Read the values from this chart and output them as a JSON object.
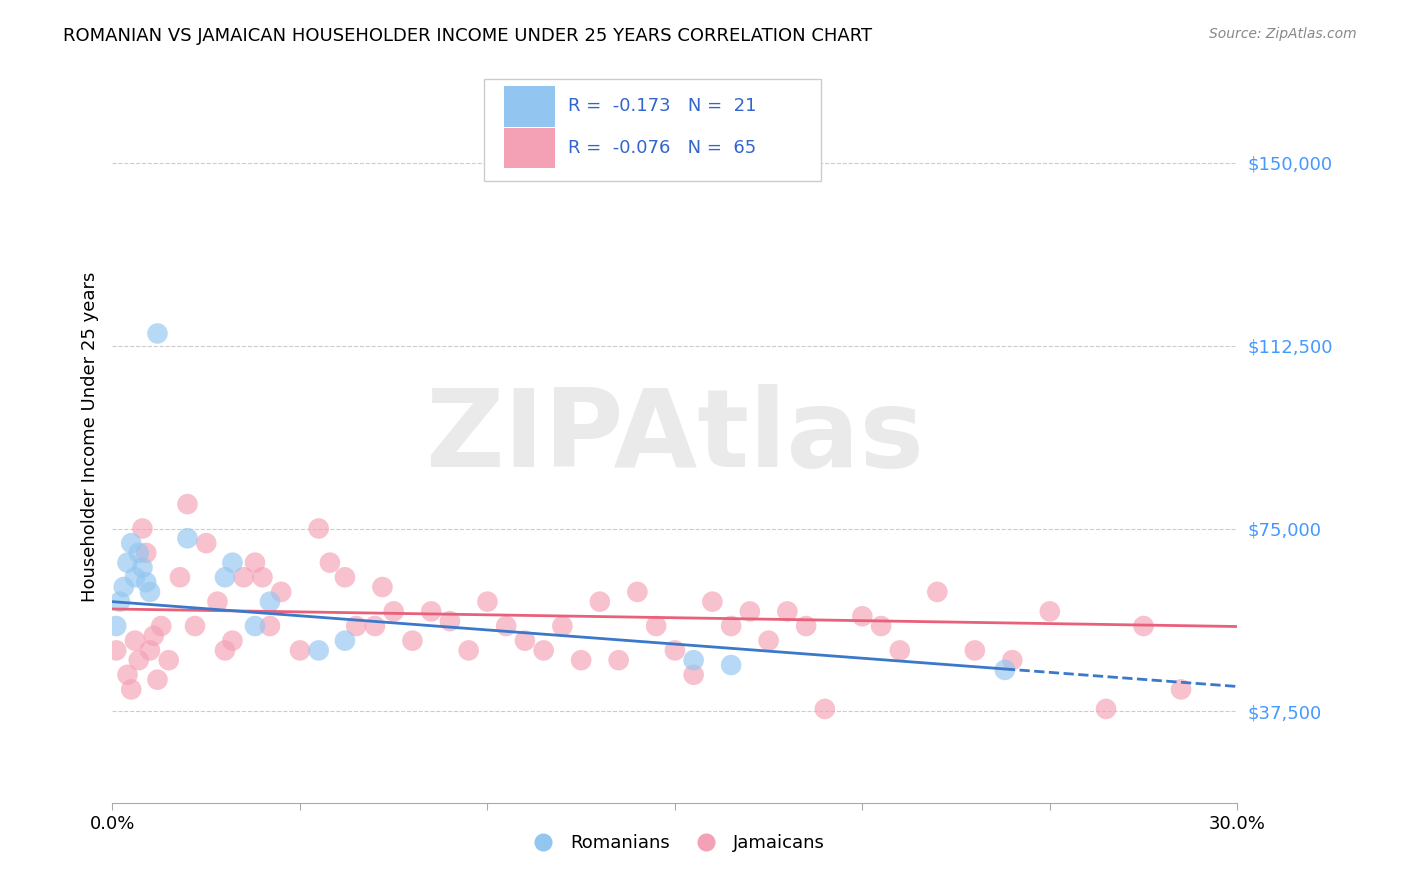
{
  "title": "ROMANIAN VS JAMAICAN HOUSEHOLDER INCOME UNDER 25 YEARS CORRELATION CHART",
  "source": "Source: ZipAtlas.com",
  "ylabel": "Householder Income Under 25 years",
  "xlim": [
    0.0,
    0.3
  ],
  "ylim": [
    18750,
    168750
  ],
  "yticks": [
    37500,
    75000,
    112500,
    150000
  ],
  "ytick_labels": [
    "$37,500",
    "$75,000",
    "$112,500",
    "$150,000"
  ],
  "xticks": [
    0.0,
    0.05,
    0.1,
    0.15,
    0.2,
    0.25,
    0.3
  ],
  "xtick_labels": [
    "0.0%",
    "",
    "",
    "",
    "",
    "",
    "30.0%"
  ],
  "romanian_color": "#92C5F0",
  "jamaican_color": "#F4A0B5",
  "romanian_R": -0.173,
  "romanian_N": 21,
  "jamaican_R": -0.076,
  "jamaican_N": 65,
  "line_color_romanian": "#3A78C9",
  "line_color_jamaican": "#E8607A",
  "tick_color": "#4499FF",
  "watermark": "ZIPAtlas",
  "watermark_color": "#DDDDDD",
  "romanians_x": [
    0.001,
    0.002,
    0.003,
    0.004,
    0.005,
    0.006,
    0.007,
    0.008,
    0.009,
    0.01,
    0.012,
    0.02,
    0.03,
    0.032,
    0.038,
    0.042,
    0.055,
    0.062,
    0.155,
    0.165,
    0.238
  ],
  "romanians_y": [
    55000,
    60000,
    63000,
    68000,
    72000,
    65000,
    70000,
    67000,
    64000,
    62000,
    115000,
    73000,
    65000,
    68000,
    55000,
    60000,
    50000,
    52000,
    48000,
    47000,
    46000
  ],
  "jamaicans_x": [
    0.001,
    0.004,
    0.005,
    0.006,
    0.007,
    0.008,
    0.009,
    0.01,
    0.011,
    0.012,
    0.013,
    0.015,
    0.018,
    0.02,
    0.022,
    0.025,
    0.028,
    0.03,
    0.032,
    0.035,
    0.038,
    0.04,
    0.042,
    0.045,
    0.05,
    0.055,
    0.058,
    0.062,
    0.065,
    0.07,
    0.072,
    0.075,
    0.08,
    0.085,
    0.09,
    0.095,
    0.1,
    0.105,
    0.11,
    0.115,
    0.12,
    0.125,
    0.13,
    0.135,
    0.14,
    0.145,
    0.15,
    0.155,
    0.16,
    0.165,
    0.17,
    0.175,
    0.18,
    0.185,
    0.19,
    0.2,
    0.205,
    0.21,
    0.22,
    0.23,
    0.24,
    0.25,
    0.265,
    0.275,
    0.285
  ],
  "jamaicans_y": [
    50000,
    45000,
    42000,
    52000,
    48000,
    75000,
    70000,
    50000,
    53000,
    44000,
    55000,
    48000,
    65000,
    80000,
    55000,
    72000,
    60000,
    50000,
    52000,
    65000,
    68000,
    65000,
    55000,
    62000,
    50000,
    75000,
    68000,
    65000,
    55000,
    55000,
    63000,
    58000,
    52000,
    58000,
    56000,
    50000,
    60000,
    55000,
    52000,
    50000,
    55000,
    48000,
    60000,
    48000,
    62000,
    55000,
    50000,
    45000,
    60000,
    55000,
    58000,
    52000,
    58000,
    55000,
    38000,
    57000,
    55000,
    50000,
    62000,
    50000,
    48000,
    58000,
    38000,
    55000,
    42000
  ]
}
